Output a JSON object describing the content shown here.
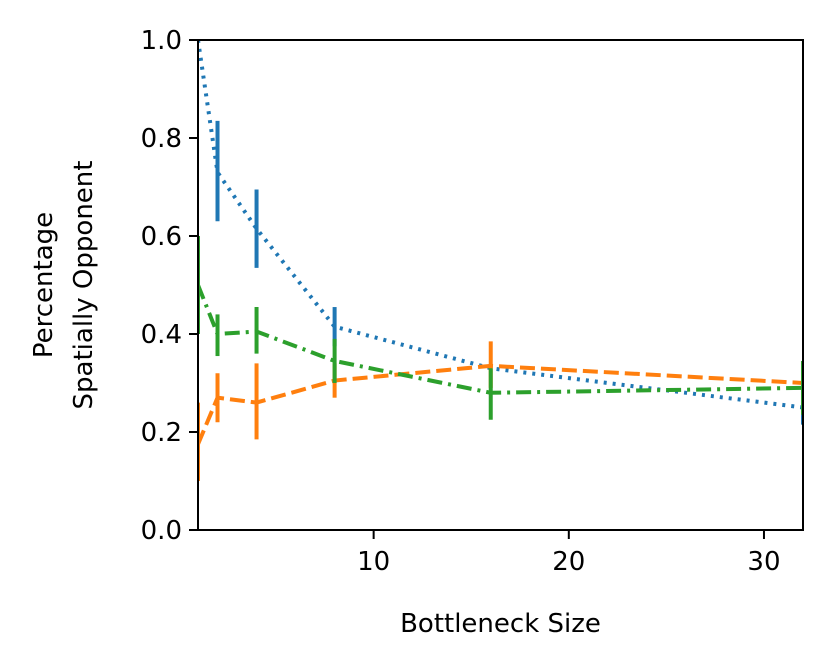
{
  "chart_data": {
    "type": "line",
    "title": "",
    "xlabel": "Bottleneck Size",
    "ylabel": [
      "Percentage",
      "Spatially Opponent"
    ],
    "xlim": [
      1,
      32
    ],
    "ylim": [
      0.0,
      1.0
    ],
    "x_ticks": [
      10,
      20,
      30
    ],
    "x_tick_labels": [
      "10",
      "20",
      "30"
    ],
    "y_ticks": [
      0.0,
      0.2,
      0.4,
      0.6,
      0.8,
      1.0
    ],
    "y_tick_labels": [
      "0.0",
      "0.2",
      "0.4",
      "0.6",
      "0.8",
      "1.0"
    ],
    "grid": false,
    "legend": "none",
    "x": [
      1,
      2,
      4,
      8,
      16,
      32
    ],
    "series": [
      {
        "color": "#1f77b4",
        "linestyle": "dotted",
        "values": [
          1.0,
          0.73,
          0.615,
          0.415,
          0.33,
          0.25
        ],
        "err_low": [
          1.0,
          0.63,
          0.535,
          0.375,
          0.33,
          0.215
        ],
        "err_high": [
          1.0,
          0.835,
          0.695,
          0.455,
          0.33,
          0.34
        ]
      },
      {
        "color": "#ff7f0e",
        "linestyle": "dashed",
        "values": [
          0.175,
          0.27,
          0.26,
          0.305,
          0.335,
          0.3
        ],
        "err_low": [
          0.1,
          0.22,
          0.185,
          0.27,
          0.29,
          0.26
        ],
        "err_high": [
          0.26,
          0.32,
          0.34,
          0.34,
          0.385,
          0.34
        ]
      },
      {
        "color": "#2ca02c",
        "linestyle": "dashdot",
        "values": [
          0.5,
          0.4,
          0.405,
          0.345,
          0.28,
          0.29
        ],
        "err_low": [
          0.4,
          0.355,
          0.36,
          0.3,
          0.225,
          0.235
        ],
        "err_high": [
          0.6,
          0.44,
          0.455,
          0.39,
          0.33,
          0.345
        ]
      }
    ]
  }
}
